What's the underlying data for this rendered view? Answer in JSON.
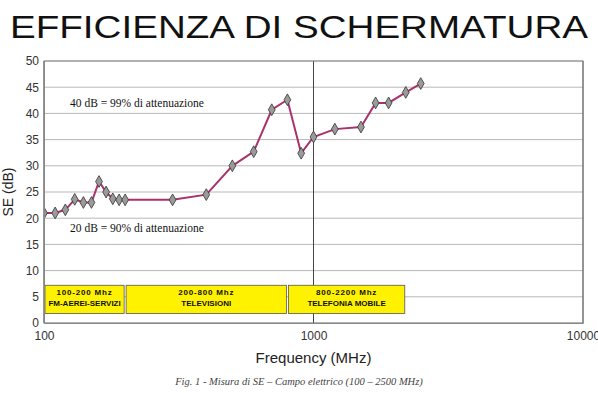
{
  "chart_data": {
    "type": "line",
    "title": "EFFICIENZA DI SCHERMATURA",
    "x_label": "Frequency (MHz)",
    "y_label": "SE (dB)",
    "caption": "Fig. 1 - Misura di SE – Campo elettrico (100 – 2500 MHz)",
    "annotations": [
      "40 dB = 99% di attenuazione",
      "20 dB = 90% di attenuazione"
    ],
    "bands": [
      {
        "from": 100,
        "to": 200,
        "label": "100-200 Mhz",
        "sublabel": "FM-AEREI-SERVIZI"
      },
      {
        "from": 200,
        "to": 800,
        "label": "200-800 Mhz",
        "sublabel": "TELEVISIONI"
      },
      {
        "from": 800,
        "to": 2200,
        "label": "800-2200 Mhz",
        "sublabel": "TELEFONIA MOBILE"
      }
    ],
    "x": [
      100,
      110,
      120,
      130,
      140,
      150,
      160,
      170,
      180,
      190,
      200,
      300,
      400,
      500,
      600,
      700,
      800,
      900,
      1000,
      1200,
      1500,
      1700,
      1900,
      2200,
      2500
    ],
    "series": [
      {
        "color": "#a8326c",
        "marker": "diamond",
        "line_style": "solid",
        "values": [
          21,
          21,
          21.6,
          23.6,
          23,
          23,
          27,
          25,
          23.7,
          23.5,
          23.5,
          23.5,
          24.5,
          30,
          32.7,
          40.7,
          42.6,
          32.4,
          35.5,
          37,
          37.4,
          42,
          42,
          44,
          45.7
        ]
      }
    ],
    "log": "x",
    "grid": true,
    "xlim": [
      100,
      10000
    ],
    "xticks": [
      100,
      1000,
      10000
    ],
    "ylim": [
      0,
      50
    ],
    "yticks": [
      0,
      5,
      10,
      15,
      20,
      25,
      30,
      35,
      40,
      45,
      50
    ]
  }
}
